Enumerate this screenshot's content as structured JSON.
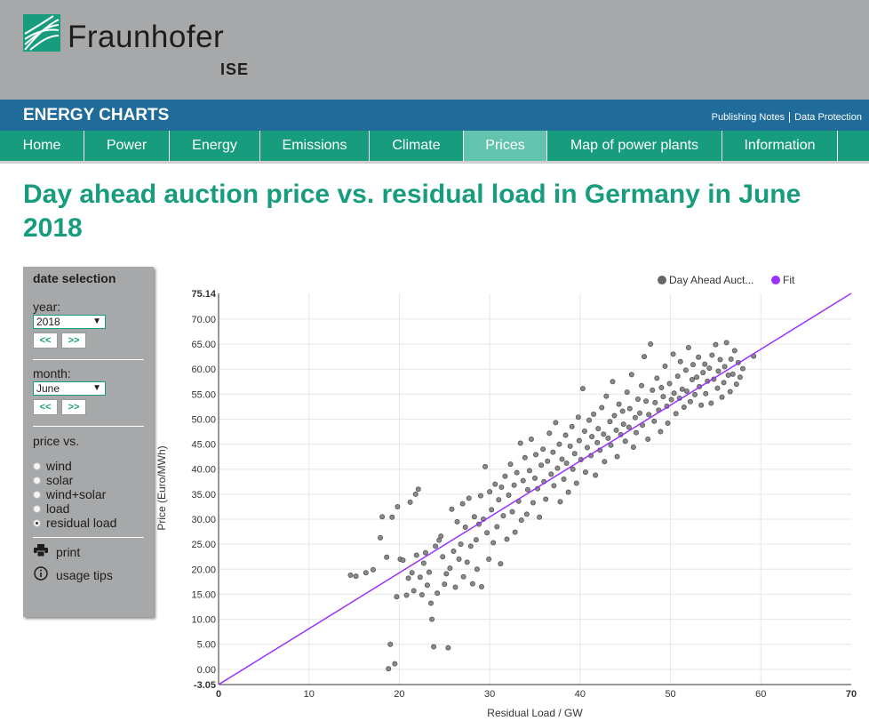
{
  "header": {
    "logo_name": "Fraunhofer",
    "logo_sub": "ISE"
  },
  "bluebar": {
    "title": "ENERGY CHARTS",
    "links": [
      "Publishing Notes",
      "Data Protection"
    ]
  },
  "nav": {
    "items": [
      "Home",
      "Power",
      "Energy",
      "Emissions",
      "Climate",
      "Prices",
      "Map of power plants",
      "Information"
    ],
    "active": "Prices"
  },
  "page": {
    "title": "Day ahead auction price vs. residual load in Germany in June 2018"
  },
  "sidebar": {
    "heading": "date selection",
    "year_label": "year:",
    "year_value": "2018",
    "month_label": "month:",
    "month_value": "June",
    "prev_label": "<<",
    "next_label": ">>",
    "price_vs_label": "price vs.",
    "options": [
      "wind",
      "solar",
      "wind+solar",
      "load",
      "residual load"
    ],
    "selected_option": "residual load",
    "print_label": "print",
    "tips_label": "usage tips"
  },
  "colors": {
    "green": "#179c7d",
    "blue": "#1f6b99",
    "gray": "#a7a8aa",
    "fit": "#9b30ff",
    "points": "#7a7a7a"
  },
  "chart_data": {
    "type": "scatter",
    "xlabel": "Residual Load / GW",
    "ylabel": "Price (Euro/MWh)",
    "xlim": [
      0,
      70
    ],
    "ylim": [
      -3.05,
      75.14
    ],
    "x_ticks": [
      "0",
      "10",
      "20",
      "30",
      "40",
      "50",
      "60",
      "70"
    ],
    "y_ticks": [
      "-3.05",
      "0.00",
      "5.00",
      "10.00",
      "15.00",
      "20.00",
      "25.00",
      "30.00",
      "35.00",
      "40.00",
      "45.00",
      "50.00",
      "55.00",
      "60.00",
      "65.00",
      "70.00",
      "75.14"
    ],
    "grid": true,
    "legend": "top-right",
    "legend_entries": [
      "Day Ahead Auct...",
      "Fit"
    ],
    "fit_line": {
      "x": [
        0,
        70
      ],
      "y": [
        -3.05,
        75.14
      ]
    },
    "points": [
      [
        14.6,
        18.8
      ],
      [
        15.2,
        18.6
      ],
      [
        16.3,
        19.3
      ],
      [
        17.1,
        19.9
      ],
      [
        17.9,
        26.3
      ],
      [
        18.1,
        30.5
      ],
      [
        18.6,
        22.4
      ],
      [
        18.8,
        0.1
      ],
      [
        19.0,
        5.0
      ],
      [
        19.2,
        30.4
      ],
      [
        19.5,
        1.1
      ],
      [
        19.7,
        14.5
      ],
      [
        19.8,
        32.5
      ],
      [
        20.1,
        22.0
      ],
      [
        20.4,
        21.8
      ],
      [
        20.8,
        14.8
      ],
      [
        21.0,
        18.2
      ],
      [
        21.2,
        33.4
      ],
      [
        21.4,
        19.3
      ],
      [
        21.6,
        15.7
      ],
      [
        21.8,
        35.0
      ],
      [
        21.9,
        22.8
      ],
      [
        22.1,
        36.0
      ],
      [
        22.3,
        18.4
      ],
      [
        22.5,
        14.9
      ],
      [
        22.7,
        21.2
      ],
      [
        22.9,
        23.3
      ],
      [
        23.1,
        16.8
      ],
      [
        23.3,
        19.4
      ],
      [
        23.5,
        13.2
      ],
      [
        23.6,
        10.0
      ],
      [
        23.8,
        4.5
      ],
      [
        24.0,
        24.6
      ],
      [
        24.2,
        15.2
      ],
      [
        24.4,
        25.8
      ],
      [
        24.6,
        26.6
      ],
      [
        24.8,
        22.5
      ],
      [
        25.0,
        17.0
      ],
      [
        25.2,
        19.1
      ],
      [
        25.4,
        4.3
      ],
      [
        25.6,
        20.2
      ],
      [
        25.8,
        32.0
      ],
      [
        26.0,
        23.6
      ],
      [
        26.2,
        16.4
      ],
      [
        26.4,
        29.5
      ],
      [
        26.6,
        22.0
      ],
      [
        26.8,
        25.0
      ],
      [
        27.0,
        33.1
      ],
      [
        27.1,
        18.5
      ],
      [
        27.3,
        28.4
      ],
      [
        27.5,
        21.4
      ],
      [
        27.7,
        34.2
      ],
      [
        27.9,
        24.6
      ],
      [
        28.1,
        17.1
      ],
      [
        28.3,
        30.5
      ],
      [
        28.5,
        25.9
      ],
      [
        28.6,
        20.0
      ],
      [
        28.8,
        29.0
      ],
      [
        29.0,
        34.7
      ],
      [
        29.1,
        16.5
      ],
      [
        29.3,
        30.0
      ],
      [
        29.5,
        40.5
      ],
      [
        29.7,
        27.3
      ],
      [
        29.9,
        22.0
      ],
      [
        30.0,
        35.5
      ],
      [
        30.2,
        31.9
      ],
      [
        30.4,
        25.3
      ],
      [
        30.6,
        37.0
      ],
      [
        30.8,
        28.5
      ],
      [
        31.0,
        33.9
      ],
      [
        31.2,
        21.1
      ],
      [
        31.3,
        36.4
      ],
      [
        31.5,
        30.7
      ],
      [
        31.7,
        38.6
      ],
      [
        31.9,
        26.0
      ],
      [
        32.1,
        34.8
      ],
      [
        32.3,
        41.0
      ],
      [
        32.5,
        31.5
      ],
      [
        32.7,
        36.8
      ],
      [
        32.8,
        27.4
      ],
      [
        33.0,
        39.3
      ],
      [
        33.2,
        33.6
      ],
      [
        33.4,
        45.2
      ],
      [
        33.5,
        29.8
      ],
      [
        33.7,
        37.7
      ],
      [
        33.9,
        42.3
      ],
      [
        34.1,
        31.0
      ],
      [
        34.2,
        35.9
      ],
      [
        34.4,
        39.7
      ],
      [
        34.6,
        46.0
      ],
      [
        34.8,
        33.3
      ],
      [
        35.0,
        38.2
      ],
      [
        35.1,
        42.9
      ],
      [
        35.3,
        36.1
      ],
      [
        35.5,
        30.4
      ],
      [
        35.7,
        40.8
      ],
      [
        35.9,
        44.0
      ],
      [
        36.0,
        37.5
      ],
      [
        36.2,
        34.0
      ],
      [
        36.4,
        41.6
      ],
      [
        36.6,
        47.2
      ],
      [
        36.8,
        39.0
      ],
      [
        37.0,
        43.4
      ],
      [
        37.1,
        36.7
      ],
      [
        37.3,
        49.3
      ],
      [
        37.5,
        40.2
      ],
      [
        37.7,
        45.0
      ],
      [
        37.8,
        33.5
      ],
      [
        38.0,
        42.0
      ],
      [
        38.2,
        38.0
      ],
      [
        38.4,
        46.8
      ],
      [
        38.5,
        41.2
      ],
      [
        38.7,
        35.4
      ],
      [
        38.9,
        44.6
      ],
      [
        39.1,
        48.5
      ],
      [
        39.2,
        40.0
      ],
      [
        39.4,
        43.1
      ],
      [
        39.6,
        37.2
      ],
      [
        39.8,
        50.4
      ],
      [
        39.9,
        45.7
      ],
      [
        40.1,
        41.9
      ],
      [
        40.3,
        56.1
      ],
      [
        40.5,
        47.6
      ],
      [
        40.6,
        39.4
      ],
      [
        40.8,
        44.3
      ],
      [
        41.0,
        49.8
      ],
      [
        41.2,
        42.7
      ],
      [
        41.3,
        46.5
      ],
      [
        41.5,
        51.0
      ],
      [
        41.7,
        38.8
      ],
      [
        41.9,
        45.3
      ],
      [
        42.0,
        48.1
      ],
      [
        42.2,
        43.8
      ],
      [
        42.4,
        52.3
      ],
      [
        42.6,
        47.0
      ],
      [
        42.7,
        41.5
      ],
      [
        42.9,
        54.6
      ],
      [
        43.1,
        46.2
      ],
      [
        43.3,
        49.5
      ],
      [
        43.4,
        44.8
      ],
      [
        43.6,
        57.5
      ],
      [
        43.8,
        50.7
      ],
      [
        44.0,
        47.8
      ],
      [
        44.1,
        42.5
      ],
      [
        44.3,
        53.0
      ],
      [
        44.5,
        46.9
      ],
      [
        44.7,
        51.6
      ],
      [
        44.8,
        49.0
      ],
      [
        45.0,
        45.6
      ],
      [
        45.2,
        55.4
      ],
      [
        45.4,
        48.4
      ],
      [
        45.5,
        52.1
      ],
      [
        45.7,
        58.9
      ],
      [
        45.9,
        44.4
      ],
      [
        46.1,
        50.3
      ],
      [
        46.2,
        47.3
      ],
      [
        46.4,
        54.0
      ],
      [
        46.6,
        51.2
      ],
      [
        46.8,
        56.7
      ],
      [
        46.9,
        48.8
      ],
      [
        47.1,
        62.5
      ],
      [
        47.3,
        53.6
      ],
      [
        47.5,
        46.0
      ],
      [
        47.6,
        50.9
      ],
      [
        47.8,
        65.0
      ],
      [
        48.0,
        55.8
      ],
      [
        48.2,
        49.6
      ],
      [
        48.3,
        53.3
      ],
      [
        48.5,
        58.2
      ],
      [
        48.7,
        51.8
      ],
      [
        48.9,
        47.5
      ],
      [
        49.0,
        56.3
      ],
      [
        49.2,
        54.5
      ],
      [
        49.4,
        60.6
      ],
      [
        49.6,
        52.6
      ],
      [
        49.7,
        49.2
      ],
      [
        49.9,
        57.1
      ],
      [
        50.1,
        53.9
      ],
      [
        50.3,
        63.0
      ],
      [
        50.4,
        55.2
      ],
      [
        50.6,
        51.1
      ],
      [
        50.8,
        58.6
      ],
      [
        51.0,
        54.2
      ],
      [
        51.1,
        61.5
      ],
      [
        51.3,
        56.0
      ],
      [
        51.5,
        52.4
      ],
      [
        51.7,
        59.8
      ],
      [
        51.8,
        55.6
      ],
      [
        52.0,
        64.3
      ],
      [
        52.2,
        53.5
      ],
      [
        52.4,
        57.9
      ],
      [
        52.5,
        60.9
      ],
      [
        52.7,
        54.9
      ],
      [
        52.9,
        58.4
      ],
      [
        53.1,
        62.4
      ],
      [
        53.2,
        56.5
      ],
      [
        53.4,
        52.8
      ],
      [
        53.6,
        59.3
      ],
      [
        53.8,
        61.0
      ],
      [
        53.9,
        55.1
      ],
      [
        54.1,
        57.6
      ],
      [
        54.3,
        60.2
      ],
      [
        54.5,
        53.2
      ],
      [
        54.6,
        62.8
      ],
      [
        54.8,
        58.0
      ],
      [
        55.0,
        64.9
      ],
      [
        55.2,
        56.2
      ],
      [
        55.3,
        59.6
      ],
      [
        55.5,
        61.9
      ],
      [
        55.7,
        54.4
      ],
      [
        55.9,
        57.3
      ],
      [
        56.0,
        60.5
      ],
      [
        56.2,
        65.3
      ],
      [
        56.4,
        58.8
      ],
      [
        56.6,
        55.5
      ],
      [
        56.7,
        62.0
      ],
      [
        56.9,
        59.0
      ],
      [
        57.1,
        63.7
      ],
      [
        57.3,
        57.0
      ],
      [
        57.5,
        61.3
      ],
      [
        57.7,
        58.4
      ],
      [
        58.0,
        60.1
      ],
      [
        59.2,
        62.6
      ]
    ]
  }
}
